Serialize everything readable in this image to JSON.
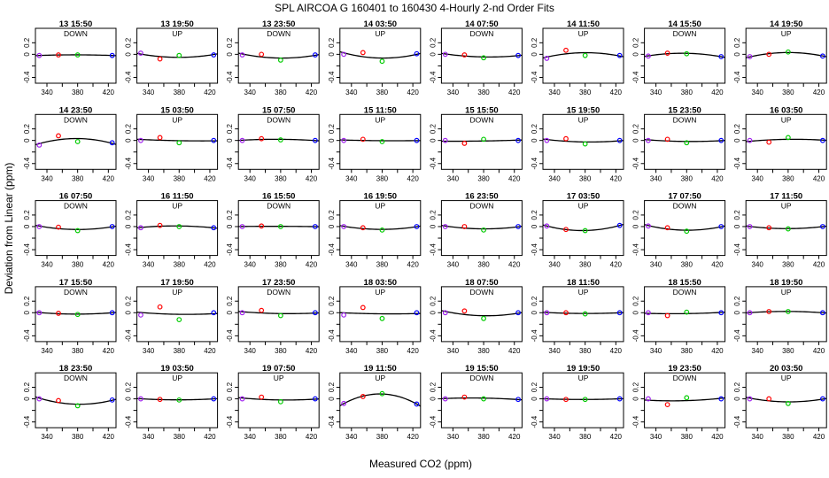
{
  "title": "SPL    AIRCOA G    160401 to 160430    4-Hourly 2-nd Order Fits",
  "chart_data": {
    "type": "scatter",
    "title": "SPL    AIRCOA G    160401 to 160430    4-Hourly 2-nd Order Fits",
    "xlabel": "Measured CO2 (ppm)",
    "ylabel": "Deviation from Linear (ppm)",
    "xlim": [
      325,
      430
    ],
    "ylim": [
      -0.5,
      0.45
    ],
    "xticks": [
      340,
      380,
      420
    ],
    "yticks": [
      -0.4,
      0.0,
      0.2
    ],
    "xtick_labels": [
      "340",
      "380",
      "420"
    ],
    "ytick_labels": [
      "-0.4",
      "0",
      "0.2"
    ],
    "std_x": [
      330,
      355,
      380,
      425
    ],
    "std_colors": [
      "#a020f0",
      "#ff0000",
      "#00cc00",
      "#0000ff"
    ],
    "panels": [
      {
        "label": "13 15:50",
        "mode": "DOWN",
        "y": [
          -0.02,
          -0.01,
          -0.01,
          -0.02
        ]
      },
      {
        "label": "13 19:50",
        "mode": "UP",
        "y": [
          0.02,
          -0.08,
          -0.02,
          -0.01
        ]
      },
      {
        "label": "13 23:50",
        "mode": "DOWN",
        "y": [
          -0.01,
          0.0,
          -0.1,
          -0.01
        ]
      },
      {
        "label": "14 03:50",
        "mode": "UP",
        "y": [
          0.0,
          0.03,
          -0.12,
          0.01
        ]
      },
      {
        "label": "14 07:50",
        "mode": "DOWN",
        "y": [
          0.0,
          -0.01,
          -0.06,
          -0.02
        ]
      },
      {
        "label": "14 11:50",
        "mode": "UP",
        "y": [
          -0.07,
          0.07,
          -0.02,
          -0.02
        ]
      },
      {
        "label": "14 15:50",
        "mode": "DOWN",
        "y": [
          -0.03,
          0.02,
          0.01,
          -0.04
        ]
      },
      {
        "label": "14 19:50",
        "mode": "UP",
        "y": [
          -0.04,
          0.0,
          0.04,
          -0.03
        ]
      },
      {
        "label": "14 23:50",
        "mode": "DOWN",
        "y": [
          -0.08,
          0.08,
          -0.02,
          -0.04
        ]
      },
      {
        "label": "15 03:50",
        "mode": "UP",
        "y": [
          0.0,
          0.05,
          -0.04,
          0.0
        ]
      },
      {
        "label": "15 07:50",
        "mode": "DOWN",
        "y": [
          0.0,
          0.03,
          0.01,
          0.0
        ]
      },
      {
        "label": "15 11:50",
        "mode": "UP",
        "y": [
          0.0,
          0.02,
          -0.02,
          0.0
        ]
      },
      {
        "label": "15 15:50",
        "mode": "DOWN",
        "y": [
          0.0,
          -0.05,
          0.02,
          0.0
        ]
      },
      {
        "label": "15 19:50",
        "mode": "UP",
        "y": [
          0.0,
          0.03,
          -0.06,
          0.0
        ]
      },
      {
        "label": "15 23:50",
        "mode": "DOWN",
        "y": [
          0.0,
          0.02,
          -0.04,
          0.0
        ]
      },
      {
        "label": "16 03:50",
        "mode": "UP",
        "y": [
          0.0,
          -0.03,
          0.05,
          0.0
        ]
      },
      {
        "label": "16 07:50",
        "mode": "DOWN",
        "y": [
          0.0,
          -0.01,
          -0.07,
          0.0
        ]
      },
      {
        "label": "16 11:50",
        "mode": "UP",
        "y": [
          -0.02,
          0.02,
          0.0,
          -0.02
        ]
      },
      {
        "label": "16 15:50",
        "mode": "DOWN",
        "y": [
          0.0,
          0.01,
          0.0,
          0.0
        ]
      },
      {
        "label": "16 19:50",
        "mode": "UP",
        "y": [
          0.0,
          -0.02,
          -0.06,
          0.0
        ]
      },
      {
        "label": "16 23:50",
        "mode": "DOWN",
        "y": [
          0.0,
          0.0,
          -0.06,
          0.0
        ]
      },
      {
        "label": "17 03:50",
        "mode": "UP",
        "y": [
          0.01,
          -0.05,
          -0.07,
          0.02
        ]
      },
      {
        "label": "17 07:50",
        "mode": "DOWN",
        "y": [
          0.01,
          -0.02,
          -0.08,
          0.0
        ]
      },
      {
        "label": "17 11:50",
        "mode": "UP",
        "y": [
          0.0,
          -0.02,
          -0.04,
          0.0
        ]
      },
      {
        "label": "17 15:50",
        "mode": "DOWN",
        "y": [
          0.0,
          -0.01,
          -0.03,
          0.0
        ]
      },
      {
        "label": "17 19:50",
        "mode": "UP",
        "y": [
          -0.04,
          0.1,
          -0.12,
          0.0
        ]
      },
      {
        "label": "17 23:50",
        "mode": "DOWN",
        "y": [
          0.0,
          0.04,
          -0.05,
          0.0
        ]
      },
      {
        "label": "18 03:50",
        "mode": "UP",
        "y": [
          -0.04,
          0.09,
          -0.1,
          0.0
        ]
      },
      {
        "label": "18 07:50",
        "mode": "DOWN",
        "y": [
          0.0,
          0.03,
          -0.1,
          0.0
        ]
      },
      {
        "label": "18 11:50",
        "mode": "UP",
        "y": [
          0.0,
          0.0,
          -0.02,
          0.0
        ]
      },
      {
        "label": "18 15:50",
        "mode": "DOWN",
        "y": [
          0.0,
          -0.05,
          0.01,
          0.0
        ]
      },
      {
        "label": "18 19:50",
        "mode": "UP",
        "y": [
          0.0,
          0.02,
          0.02,
          0.0
        ]
      },
      {
        "label": "18 23:50",
        "mode": "DOWN",
        "y": [
          0.0,
          -0.03,
          -0.12,
          -0.02
        ]
      },
      {
        "label": "19 03:50",
        "mode": "UP",
        "y": [
          0.0,
          -0.01,
          -0.02,
          0.0
        ]
      },
      {
        "label": "19 07:50",
        "mode": "UP",
        "y": [
          0.0,
          0.03,
          -0.05,
          0.0
        ]
      },
      {
        "label": "19 11:50",
        "mode": "UP",
        "y": [
          -0.08,
          0.04,
          0.09,
          -0.09
        ]
      },
      {
        "label": "19 15:50",
        "mode": "DOWN",
        "y": [
          0.0,
          0.03,
          0.0,
          -0.01
        ]
      },
      {
        "label": "19 19:50",
        "mode": "UP",
        "y": [
          0.0,
          -0.01,
          -0.01,
          0.0
        ]
      },
      {
        "label": "19 23:50",
        "mode": "DOWN",
        "y": [
          0.0,
          -0.1,
          0.02,
          0.0
        ]
      },
      {
        "label": "20 03:50",
        "mode": "UP",
        "y": [
          0.0,
          0.0,
          -0.08,
          0.0
        ]
      }
    ]
  }
}
